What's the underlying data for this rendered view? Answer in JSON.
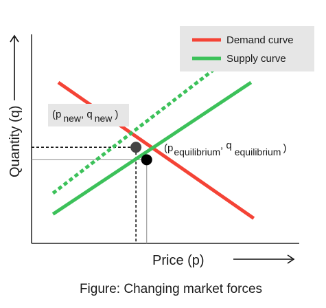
{
  "chart_data": {
    "type": "line",
    "caption": "Figure: Changing market forces",
    "xlabel": "Price (p)",
    "ylabel": "Quantity (q)",
    "xlim": [
      0,
      10
    ],
    "ylim": [
      0,
      10
    ],
    "grid": false,
    "legend_position": "top-right",
    "series": [
      {
        "name": "Demand curve",
        "color": "#f44336",
        "style": "solid",
        "points": [
          [
            1.0,
            7.7
          ],
          [
            8.3,
            1.2
          ]
        ]
      },
      {
        "name": "Supply curve",
        "color": "#3cc15a",
        "style": "solid",
        "points": [
          [
            0.8,
            1.4
          ],
          [
            8.2,
            7.7
          ]
        ]
      },
      {
        "name": "",
        "color": "#3cc15a",
        "style": "dotted",
        "points": [
          [
            0.8,
            2.4
          ],
          [
            7.0,
            8.5
          ]
        ]
      }
    ],
    "points": [
      {
        "label_parts": [
          "(p",
          "equilibrium",
          ", q",
          "equilibrium",
          ")"
        ],
        "x": 4.3,
        "y": 4.0,
        "color": "#000000"
      },
      {
        "label_parts": [
          "(p",
          "new",
          ", q",
          "new",
          ")"
        ],
        "x": 3.9,
        "y": 4.6,
        "color": "#444444"
      }
    ],
    "markers": [
      {
        "x": 3.9,
        "y": 4.6,
        "style": "dashed"
      },
      {
        "x": 4.3,
        "y": 4.0,
        "style": "solid-gray"
      }
    ]
  }
}
